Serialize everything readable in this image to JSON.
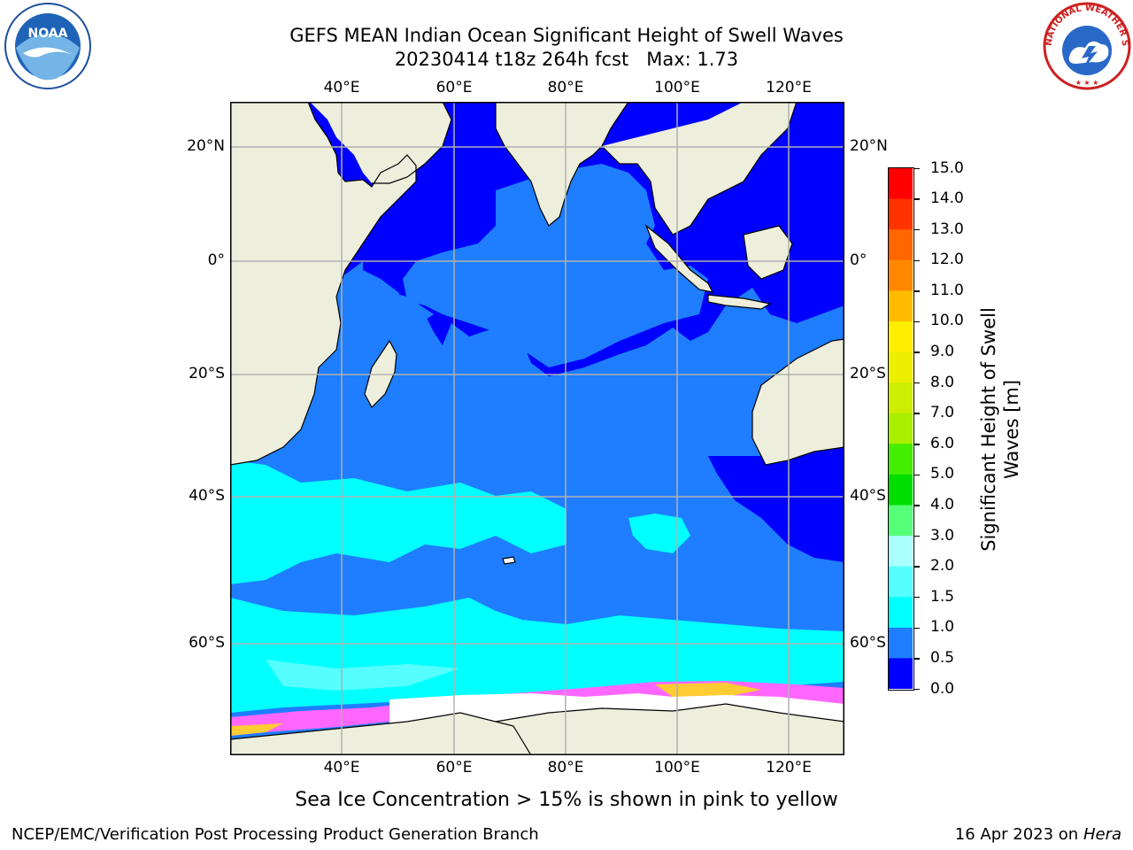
{
  "header": {
    "title_line1": "GEFS MEAN Indian Ocean Significant Height of Swell Waves",
    "title_line2": "20230414 t18z 264h fcst   Max: 1.73"
  },
  "logos": {
    "left": {
      "name": "noaa-logo",
      "text": "NOAA"
    },
    "right": {
      "name": "nws-logo",
      "text": "NATIONAL WEATHER SERVICE"
    }
  },
  "map": {
    "lon_ticks_top": [
      "40°E",
      "60°E",
      "80°E",
      "100°E",
      "120°E"
    ],
    "lon_ticks_bottom": [
      "40°E",
      "60°E",
      "80°E",
      "100°E",
      "120°E"
    ],
    "lat_ticks_left": [
      "20°N",
      "0°",
      "20°S",
      "40°S",
      "60°S"
    ],
    "lat_ticks_right": [
      "20°N",
      "0°",
      "20°S",
      "40°S",
      "60°S"
    ],
    "colors": {
      "land": "#eeeedd",
      "ocean_0_05": "#0000ff",
      "ocean_05_1": "#1e7eff",
      "ocean_1_15": "#00ffff",
      "ocean_15_2": "#55ffff",
      "ice": "#ff66ff",
      "ice_yellow": "#ffcc33"
    }
  },
  "colorbar": {
    "title_line1": "Significant Height of Swell",
    "title_line2": "Waves [m]",
    "ticks": [
      "15.0",
      "14.0",
      "13.0",
      "12.0",
      "11.0",
      "10.0",
      "9.0",
      "8.0",
      "7.0",
      "6.0",
      "5.0",
      "4.0",
      "3.0",
      "2.0",
      "1.5",
      "1.0",
      "0.5",
      "0.0"
    ],
    "bins": [
      {
        "from": 0.0,
        "to": 0.5,
        "color": "#0000ff"
      },
      {
        "from": 0.5,
        "to": 1.0,
        "color": "#1e7eff"
      },
      {
        "from": 1.0,
        "to": 1.5,
        "color": "#00ffff"
      },
      {
        "from": 1.5,
        "to": 2.0,
        "color": "#55ffff"
      },
      {
        "from": 2.0,
        "to": 3.0,
        "color": "#aaffff"
      },
      {
        "from": 3.0,
        "to": 4.0,
        "color": "#55ff77"
      },
      {
        "from": 4.0,
        "to": 5.0,
        "color": "#00dd00"
      },
      {
        "from": 5.0,
        "to": 6.0,
        "color": "#44ee00"
      },
      {
        "from": 6.0,
        "to": 7.0,
        "color": "#aaee00"
      },
      {
        "from": 7.0,
        "to": 8.0,
        "color": "#ccee00"
      },
      {
        "from": 8.0,
        "to": 9.0,
        "color": "#eeee00"
      },
      {
        "from": 9.0,
        "to": 10.0,
        "color": "#ffee00"
      },
      {
        "from": 10.0,
        "to": 11.0,
        "color": "#ffbb00"
      },
      {
        "from": 11.0,
        "to": 12.0,
        "color": "#ff8800"
      },
      {
        "from": 12.0,
        "to": 13.0,
        "color": "#ff6600"
      },
      {
        "from": 13.0,
        "to": 14.0,
        "color": "#ff3300"
      },
      {
        "from": 14.0,
        "to": 15.0,
        "color": "#ff0000"
      }
    ]
  },
  "caption": "Sea Ice Concentration > 15% is shown in pink to yellow",
  "footer": {
    "left": "NCEP/EMC/Verification Post Processing Product Generation Branch",
    "right_date": "16 Apr 2023 on ",
    "right_host": "Hera"
  }
}
